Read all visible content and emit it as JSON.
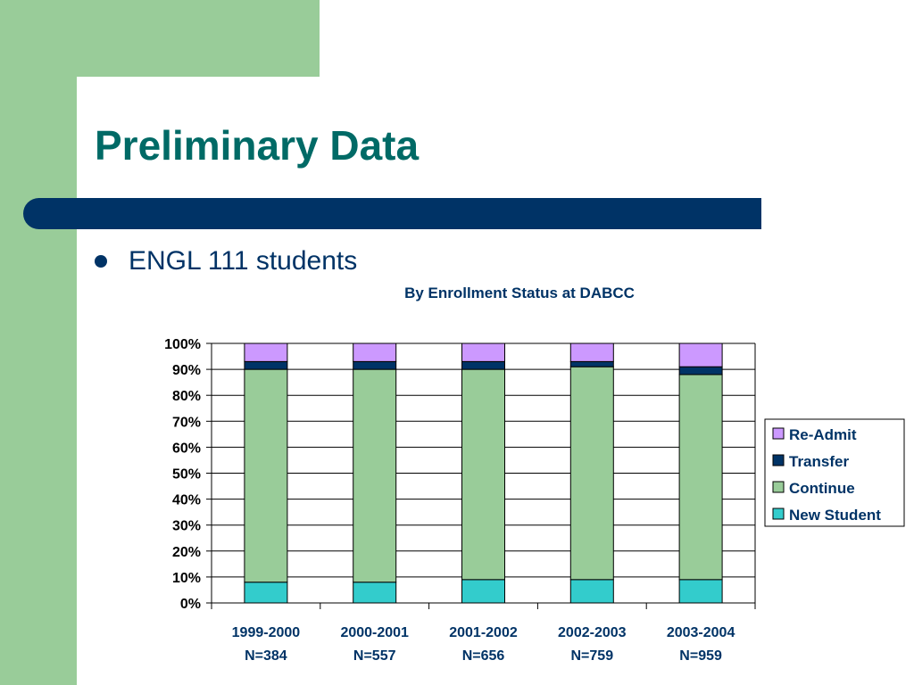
{
  "slide": {
    "title": "Preliminary Data",
    "bullet": "ENGL 111 students",
    "colors": {
      "accent_green": "#99cc99",
      "title_teal": "#006a66",
      "bar_navy": "#003366"
    }
  },
  "chart_data": {
    "type": "bar",
    "stacked": true,
    "percent": true,
    "title": "By Enrollment Status at DABCC",
    "xlabel": "",
    "ylabel": "",
    "ylim": [
      0,
      100
    ],
    "yticks": [
      "0%",
      "10%",
      "20%",
      "30%",
      "40%",
      "50%",
      "60%",
      "70%",
      "80%",
      "90%",
      "100%"
    ],
    "categories": [
      "1999-2000",
      "2000-2001",
      "2001-2002",
      "2002-2003",
      "2003-2004"
    ],
    "category_sublabels": [
      "N=384",
      "N=557",
      "N=656",
      "N=759",
      "N=959"
    ],
    "grid": true,
    "legend": "right",
    "series": [
      {
        "name": "New Student",
        "color": "#33cccc",
        "values": [
          8,
          8,
          9,
          9,
          9
        ]
      },
      {
        "name": "Continue",
        "color": "#99cc99",
        "values": [
          82,
          82,
          81,
          82,
          79
        ]
      },
      {
        "name": "Transfer",
        "color": "#003366",
        "values": [
          3,
          3,
          3,
          2,
          3
        ]
      },
      {
        "name": "Re-Admit",
        "color": "#cc99ff",
        "values": [
          7,
          7,
          7,
          7,
          9
        ]
      }
    ]
  }
}
